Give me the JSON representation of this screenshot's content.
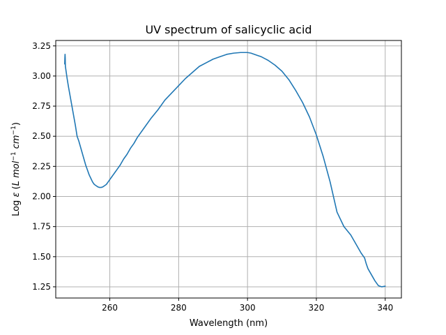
{
  "chart_data": {
    "type": "line",
    "title": "UV spectrum of salicyclic acid",
    "xlabel": "Wavelength (nm)",
    "ylabel_parts": {
      "prefix": "Log ",
      "epsilon": "ε",
      "open": " (",
      "L": "L",
      "mol": " mol",
      "mol_exp": "−1",
      "cm": " cm",
      "cm_exp": "−1",
      "close": ")"
    },
    "xlim": [
      244.3,
      344.7
    ],
    "ylim": [
      1.157,
      3.295
    ],
    "x_ticks": [
      260,
      280,
      300,
      320,
      340
    ],
    "y_ticks": [
      1.25,
      1.5,
      1.75,
      2.0,
      2.25,
      2.5,
      2.75,
      3.0,
      3.25
    ],
    "x_tick_labels": [
      "260",
      "280",
      "300",
      "320",
      "340"
    ],
    "y_tick_labels": [
      "1.25",
      "1.50",
      "1.75",
      "2.00",
      "2.25",
      "2.50",
      "2.75",
      "3.00",
      "3.25"
    ],
    "grid": true,
    "line_color": "#1f77b4",
    "series": [
      {
        "x": [
          246.9,
          246.95,
          247.0,
          247.05,
          247.1,
          247.3,
          247.6,
          248.0,
          248.5,
          249.0,
          249.5,
          250.0,
          250.5,
          251.0,
          251.5,
          252.0,
          252.5,
          253.0,
          253.5,
          254.0,
          254.5,
          255.0,
          255.5,
          256.0,
          256.5,
          257.0,
          257.5,
          258.0,
          258.5,
          259.0,
          259.5,
          260.0,
          260.5,
          261.0,
          261.5,
          262.0,
          262.5,
          263.0,
          264.0,
          265.0,
          266.0,
          267.0,
          268.0,
          270.0,
          272.0,
          274.0,
          276.0,
          278.0,
          280.0,
          282.0,
          284.0,
          286.0,
          288.0,
          290.0,
          292.0,
          294.0,
          296.0,
          298.0,
          300.0,
          301.0,
          302.0,
          303.0,
          304.0,
          306.0,
          308.0,
          310.0,
          312.0,
          314.0,
          316.0,
          318.0,
          320.0,
          322.0,
          324.0,
          326.0,
          328.0,
          330.0,
          331.0,
          332.0,
          333.0,
          334.0,
          334.5,
          335.0,
          336.0,
          337.0,
          338.0,
          339.0,
          340.0
        ],
        "y": [
          3.1,
          3.15,
          3.18,
          3.15,
          3.08,
          3.04,
          2.98,
          2.91,
          2.83,
          2.75,
          2.67,
          2.59,
          2.5,
          2.46,
          2.41,
          2.36,
          2.31,
          2.26,
          2.22,
          2.18,
          2.15,
          2.12,
          2.1,
          2.09,
          2.08,
          2.075,
          2.075,
          2.08,
          2.09,
          2.1,
          2.12,
          2.14,
          2.16,
          2.18,
          2.2,
          2.22,
          2.24,
          2.26,
          2.31,
          2.35,
          2.4,
          2.44,
          2.49,
          2.57,
          2.65,
          2.72,
          2.8,
          2.86,
          2.92,
          2.98,
          3.03,
          3.08,
          3.11,
          3.14,
          3.16,
          3.18,
          3.19,
          3.195,
          3.195,
          3.19,
          3.18,
          3.17,
          3.16,
          3.13,
          3.09,
          3.04,
          2.97,
          2.88,
          2.78,
          2.66,
          2.51,
          2.33,
          2.12,
          1.87,
          1.75,
          1.68,
          1.63,
          1.58,
          1.53,
          1.49,
          1.44,
          1.4,
          1.35,
          1.3,
          1.26,
          1.25,
          1.255
        ]
      }
    ]
  }
}
